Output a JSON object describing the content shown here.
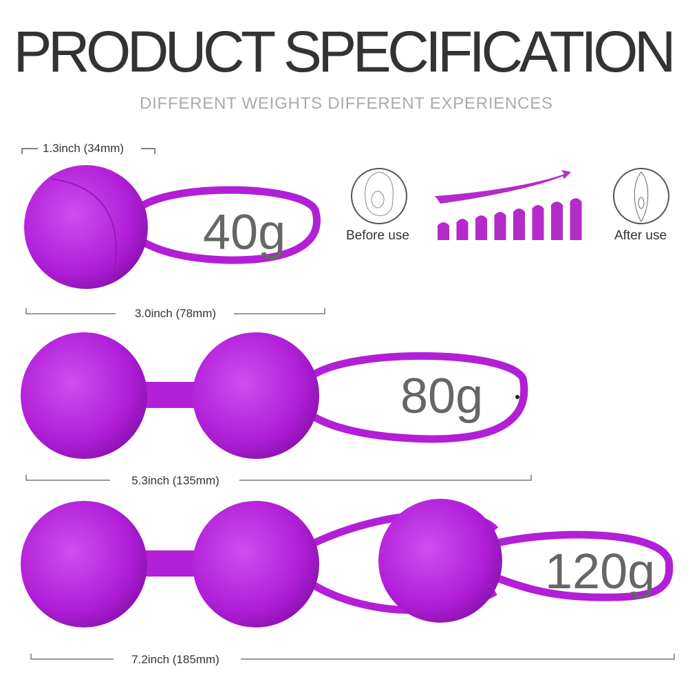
{
  "title": "PRODUCT SPECIFICATION",
  "subtitle": "DIFFERENT WEIGHTS  DIFFERENT EXPERIENCES",
  "colors": {
    "product": "#b21fd6",
    "bars": "#b52bc9",
    "text": "#333333",
    "weight_text": "#666666",
    "subtitle": "#aaaaaa"
  },
  "dimensions": {
    "ball_diameter": "1.3inch (34mm)",
    "single_length": "3.0inch (78mm)",
    "double_length": "5.3inch (135mm)",
    "triple_length": "7.2inch (185mm)"
  },
  "weights": {
    "single": "40g",
    "double": "80g",
    "triple": "120g"
  },
  "comparison": {
    "before_label": "Before use",
    "after_label": "After use",
    "before_icon": "vulva-before-icon",
    "after_icon": "vulva-after-icon",
    "bar_count": 8
  }
}
